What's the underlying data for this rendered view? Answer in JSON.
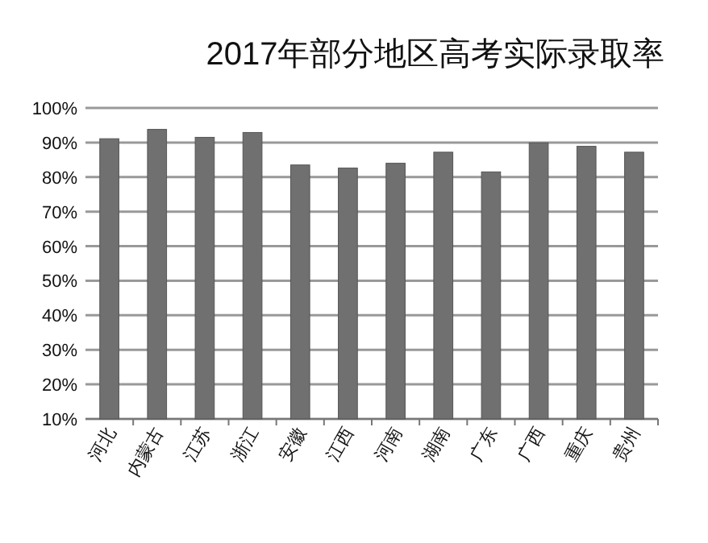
{
  "chart_data": {
    "type": "bar",
    "title": "2017年部分地区高考实际录取率",
    "categories": [
      "河北",
      "内蒙古",
      "江苏",
      "浙江",
      "安徽",
      "江西",
      "河南",
      "湖南",
      "广东",
      "广西",
      "重庆",
      "贵州"
    ],
    "values": [
      91.1,
      93.8,
      91.5,
      92.9,
      83.5,
      82.6,
      84.0,
      87.2,
      81.5,
      89.9,
      88.9,
      87.2
    ],
    "color": "#707070",
    "ylim": [
      10,
      100
    ],
    "yticks": [
      {
        "value": 10,
        "label": "10%"
      },
      {
        "value": 20,
        "label": "20%"
      },
      {
        "value": 30,
        "label": "30%"
      },
      {
        "value": 40,
        "label": "40%"
      },
      {
        "value": 50,
        "label": "50%"
      },
      {
        "value": 60,
        "label": "60%"
      },
      {
        "value": 70,
        "label": "70%"
      },
      {
        "value": 80,
        "label": "80%"
      },
      {
        "value": 90,
        "label": "90%"
      },
      {
        "value": 100,
        "label": "100%"
      }
    ],
    "grid": "y"
  }
}
